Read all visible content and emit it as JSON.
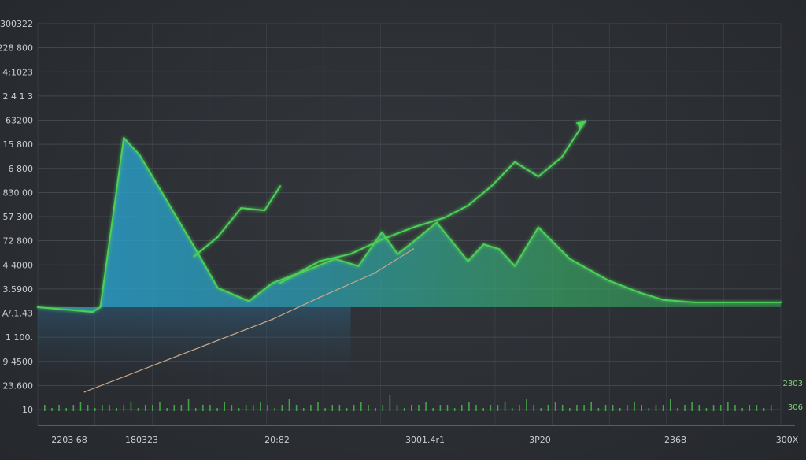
{
  "chart_data": {
    "type": "line",
    "title": "",
    "xlabel": "",
    "ylabel": "",
    "y_tick_labels": [
      "300322",
      "228 800",
      "4:1023",
      "1 2 4 1 3",
      "63200",
      "15 800",
      "6 800",
      "830 00",
      "57 300",
      "72 800",
      "4 4000",
      "3.5900",
      "A/.1.43",
      "1 100.",
      "9 4500",
      "23.600",
      "10"
    ],
    "x_tick_labels": [
      "2203 68",
      "180323",
      "20:82",
      "3001.4r1",
      "3P20",
      "2368",
      "300X"
    ],
    "right_labels": [
      "2303",
      "306"
    ],
    "grid": true,
    "baseline": 0,
    "series": [
      {
        "color": "#4cd157",
        "fill_top": "#2aa0c9",
        "points": [
          [
            0,
            0
          ],
          [
            7,
            -0.2
          ],
          [
            8,
            0
          ],
          [
            11,
            7
          ],
          [
            13,
            6.3
          ],
          [
            20,
            2.5
          ],
          [
            23,
            0.8
          ],
          [
            27,
            0.25
          ],
          [
            30,
            1
          ],
          [
            35,
            1.6
          ],
          [
            38,
            2
          ],
          [
            41,
            1.7
          ],
          [
            44,
            3.1
          ],
          [
            46,
            2.2
          ],
          [
            48,
            2.7
          ],
          [
            51,
            3.5
          ],
          [
            55,
            1.9
          ],
          [
            57,
            2.6
          ],
          [
            59,
            2.4
          ],
          [
            61,
            1.7
          ],
          [
            64,
            3.3
          ],
          [
            68,
            2
          ],
          [
            73,
            1.1
          ],
          [
            77,
            0.6
          ],
          [
            80,
            0.3
          ],
          [
            84,
            0.2
          ],
          [
            95,
            0.2
          ]
        ]
      },
      {
        "color": "#4cd157",
        "points": [
          [
            20,
            2.1
          ],
          [
            23,
            2.9
          ],
          [
            26,
            4.1
          ],
          [
            29,
            4
          ],
          [
            31,
            5
          ]
        ]
      },
      {
        "color": "#4cd157",
        "points": [
          [
            31,
            1
          ],
          [
            36,
            1.9
          ],
          [
            40,
            2.2
          ],
          [
            44,
            2.8
          ],
          [
            48,
            3.3
          ],
          [
            52,
            3.7
          ],
          [
            55,
            4.2
          ],
          [
            58,
            5
          ],
          [
            61,
            6
          ],
          [
            64,
            5.4
          ],
          [
            67,
            6.2
          ],
          [
            70,
            7.7
          ]
        ]
      },
      {
        "color": "#c7a88a",
        "points": [
          [
            6,
            -3.5
          ],
          [
            18,
            -2
          ],
          [
            30,
            -0.5
          ],
          [
            36,
            0.4
          ],
          [
            43,
            1.4
          ],
          [
            48,
            2.4
          ]
        ]
      }
    ],
    "volume_bars": [
      2,
      1,
      2,
      1,
      2,
      3,
      2,
      1,
      2,
      2,
      1,
      2,
      3,
      1,
      2,
      2,
      3,
      1,
      2,
      2,
      4,
      1,
      2,
      2,
      1,
      3,
      2,
      1,
      2,
      2,
      3,
      2,
      1,
      2,
      4,
      2,
      1,
      2,
      3,
      1,
      2,
      2,
      1,
      2,
      3,
      2,
      1,
      2,
      5,
      2,
      1,
      2,
      2,
      3,
      1,
      2,
      2,
      1,
      2,
      3,
      2,
      1,
      2,
      2,
      3,
      1,
      2,
      4,
      2,
      1,
      2,
      3,
      2,
      1,
      2,
      2,
      3,
      1,
      2,
      2,
      1,
      2,
      3,
      2,
      1,
      2,
      2,
      4,
      1,
      2,
      3,
      2,
      1,
      2,
      2,
      3,
      2,
      1,
      2,
      2,
      1,
      2
    ]
  }
}
